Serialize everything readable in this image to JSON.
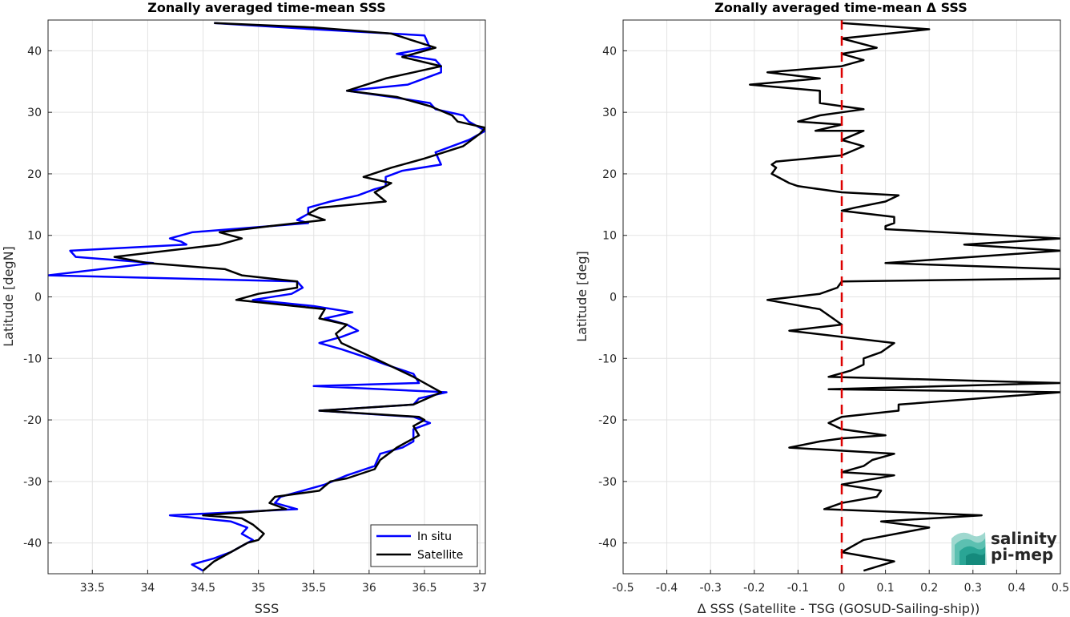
{
  "chart_data": [
    {
      "type": "line",
      "title": "Zonally averaged time-mean SSS",
      "xlabel": "SSS",
      "ylabel": "Latitude [degN]",
      "xlim": [
        33.1,
        37.05
      ],
      "ylim": [
        -45,
        45
      ],
      "xticks": [
        "33.5",
        "34",
        "34.5",
        "35",
        "35.5",
        "36",
        "36.5",
        "37"
      ],
      "xtick_values": [
        33.5,
        34,
        34.5,
        35,
        35.5,
        36,
        36.5,
        37
      ],
      "yticks": [
        "40",
        "30",
        "20",
        "10",
        "0",
        "-10",
        "-20",
        "-30",
        "-40"
      ],
      "ytick_values": [
        40,
        30,
        20,
        10,
        0,
        -10,
        -20,
        -30,
        -40
      ],
      "grid": true,
      "legend_location": "bottom-right",
      "series": [
        {
          "name": "In situ",
          "color": "#0000ff",
          "points": [
            [
              34.6,
              44.5
            ],
            [
              35.5,
              43.5
            ],
            [
              36.5,
              42.5
            ],
            [
              36.55,
              40.5
            ],
            [
              36.25,
              39.5
            ],
            [
              36.6,
              38.5
            ],
            [
              36.65,
              37.5
            ],
            [
              36.65,
              36.5
            ],
            [
              36.35,
              34.5
            ],
            [
              35.8,
              33.5
            ],
            [
              36.2,
              32.5
            ],
            [
              36.55,
              31.5
            ],
            [
              36.6,
              30.5
            ],
            [
              36.85,
              29.5
            ],
            [
              36.9,
              28.5
            ],
            [
              37.05,
              27.0
            ],
            [
              36.9,
              25.5
            ],
            [
              36.6,
              23.5
            ],
            [
              36.65,
              21.5
            ],
            [
              36.3,
              20.5
            ],
            [
              36.15,
              19.5
            ],
            [
              36.15,
              18.0
            ],
            [
              36.05,
              17.5
            ],
            [
              35.9,
              16.5
            ],
            [
              35.65,
              15.5
            ],
            [
              35.45,
              14.5
            ],
            [
              35.45,
              13.5
            ],
            [
              35.35,
              12.5
            ],
            [
              35.45,
              12.0
            ],
            [
              35.1,
              11.5
            ],
            [
              34.4,
              10.5
            ],
            [
              34.2,
              9.5
            ],
            [
              34.3,
              9.0
            ],
            [
              34.35,
              8.5
            ],
            [
              33.3,
              7.5
            ],
            [
              33.35,
              6.5
            ],
            [
              34.05,
              5.5
            ],
            [
              33.1,
              3.5
            ],
            [
              35.35,
              2.5
            ],
            [
              35.4,
              1.5
            ],
            [
              35.3,
              0.5
            ],
            [
              34.95,
              -0.5
            ],
            [
              35.5,
              -1.5
            ],
            [
              35.85,
              -2.5
            ],
            [
              35.6,
              -3.5
            ],
            [
              35.8,
              -4.5
            ],
            [
              35.9,
              -5.5
            ],
            [
              35.75,
              -6.5
            ],
            [
              35.55,
              -7.5
            ],
            [
              35.75,
              -8.5
            ],
            [
              36.0,
              -10.0
            ],
            [
              36.15,
              -11.0
            ],
            [
              36.4,
              -12.5
            ],
            [
              36.45,
              -14.0
            ],
            [
              35.5,
              -14.5
            ],
            [
              36.7,
              -15.5
            ],
            [
              36.45,
              -16.5
            ],
            [
              36.4,
              -17.5
            ],
            [
              35.55,
              -18.5
            ],
            [
              36.4,
              -19.5
            ],
            [
              36.55,
              -20.5
            ],
            [
              36.4,
              -21.5
            ],
            [
              36.4,
              -23.5
            ],
            [
              36.3,
              -24.5
            ],
            [
              36.1,
              -25.5
            ],
            [
              36.05,
              -27.5
            ],
            [
              35.8,
              -29.0
            ],
            [
              35.6,
              -30.5
            ],
            [
              35.4,
              -31.5
            ],
            [
              35.2,
              -32.5
            ],
            [
              35.15,
              -33.5
            ],
            [
              35.35,
              -34.5
            ],
            [
              34.2,
              -35.5
            ],
            [
              34.75,
              -36.5
            ],
            [
              34.9,
              -37.5
            ],
            [
              34.85,
              -38.5
            ],
            [
              34.95,
              -39.5
            ],
            [
              34.85,
              -40.5
            ],
            [
              34.75,
              -41.5
            ],
            [
              34.6,
              -42.5
            ],
            [
              34.4,
              -43.5
            ],
            [
              34.5,
              -44.5
            ]
          ]
        },
        {
          "name": "Satellite",
          "color": "#000000",
          "points": [
            [
              34.6,
              44.5
            ],
            [
              35.5,
              43.8
            ],
            [
              36.2,
              42.8
            ],
            [
              36.6,
              40.5
            ],
            [
              36.3,
              39.0
            ],
            [
              36.65,
              37.5
            ],
            [
              36.4,
              36.5
            ],
            [
              36.15,
              35.5
            ],
            [
              35.8,
              33.5
            ],
            [
              36.25,
              32.5
            ],
            [
              36.55,
              31.0
            ],
            [
              36.75,
              29.5
            ],
            [
              36.8,
              28.5
            ],
            [
              37.05,
              27.5
            ],
            [
              37.0,
              26.5
            ],
            [
              36.85,
              24.5
            ],
            [
              36.5,
              22.5
            ],
            [
              36.2,
              21.0
            ],
            [
              35.95,
              19.5
            ],
            [
              36.2,
              18.5
            ],
            [
              36.05,
              17.0
            ],
            [
              36.15,
              15.5
            ],
            [
              35.55,
              14.5
            ],
            [
              35.45,
              13.5
            ],
            [
              35.6,
              12.5
            ],
            [
              35.1,
              11.5
            ],
            [
              34.65,
              10.5
            ],
            [
              34.85,
              9.5
            ],
            [
              34.65,
              8.5
            ],
            [
              33.7,
              6.5
            ],
            [
              34.0,
              5.5
            ],
            [
              34.7,
              4.5
            ],
            [
              34.85,
              3.5
            ],
            [
              35.35,
              2.5
            ],
            [
              35.35,
              1.5
            ],
            [
              35.0,
              0.5
            ],
            [
              34.8,
              -0.5
            ],
            [
              35.6,
              -2.0
            ],
            [
              35.55,
              -3.5
            ],
            [
              35.8,
              -4.5
            ],
            [
              35.7,
              -6.0
            ],
            [
              35.75,
              -7.5
            ],
            [
              36.05,
              -10.0
            ],
            [
              36.4,
              -13.0
            ],
            [
              36.55,
              -14.5
            ],
            [
              36.65,
              -15.5
            ],
            [
              36.4,
              -17.5
            ],
            [
              35.55,
              -18.5
            ],
            [
              36.45,
              -19.5
            ],
            [
              36.5,
              -20.0
            ],
            [
              36.4,
              -21.0
            ],
            [
              36.45,
              -22.5
            ],
            [
              36.25,
              -24.5
            ],
            [
              36.1,
              -26.5
            ],
            [
              36.05,
              -28.0
            ],
            [
              35.8,
              -29.5
            ],
            [
              35.65,
              -30.0
            ],
            [
              35.55,
              -31.5
            ],
            [
              35.15,
              -32.5
            ],
            [
              35.1,
              -33.5
            ],
            [
              35.25,
              -34.5
            ],
            [
              34.5,
              -35.5
            ],
            [
              34.85,
              -36.0
            ],
            [
              34.95,
              -37.0
            ],
            [
              35.05,
              -38.5
            ],
            [
              35.0,
              -39.5
            ],
            [
              34.9,
              -40.0
            ],
            [
              34.75,
              -41.5
            ],
            [
              34.6,
              -43.0
            ],
            [
              34.5,
              -44.5
            ]
          ]
        }
      ]
    },
    {
      "type": "line",
      "title": "Zonally averaged time-mean Δ SSS",
      "xlabel": "Δ SSS (Satellite - TSG (GOSUD-Sailing-ship))",
      "ylabel": "Latitude [deg]",
      "xlim": [
        -0.5,
        0.5
      ],
      "ylim": [
        -45,
        45
      ],
      "xticks": [
        "-0.5",
        "-0.4",
        "-0.3",
        "-0.2",
        "-0.1",
        "0",
        "0.1",
        "0.2",
        "0.3",
        "0.4",
        "0.5"
      ],
      "xtick_values": [
        -0.5,
        -0.4,
        -0.3,
        -0.2,
        -0.1,
        0,
        0.1,
        0.2,
        0.3,
        0.4,
        0.5
      ],
      "yticks": [
        "40",
        "30",
        "20",
        "10",
        "0",
        "-10",
        "-20",
        "-30",
        "-40"
      ],
      "ytick_values": [
        40,
        30,
        20,
        10,
        0,
        -10,
        -20,
        -30,
        -40
      ],
      "grid": true,
      "reference_line": {
        "x": 0,
        "color": "#dd0000",
        "style": "dashed"
      },
      "series": [
        {
          "color": "#000000",
          "points": [
            [
              0.0,
              44.5
            ],
            [
              0.2,
              43.5
            ],
            [
              0.0,
              42.0
            ],
            [
              0.08,
              40.5
            ],
            [
              0.0,
              39.5
            ],
            [
              0.05,
              38.5
            ],
            [
              0.0,
              37.5
            ],
            [
              -0.17,
              36.5
            ],
            [
              -0.05,
              35.5
            ],
            [
              -0.21,
              34.5
            ],
            [
              -0.05,
              33.5
            ],
            [
              -0.05,
              32.5
            ],
            [
              -0.05,
              31.5
            ],
            [
              0.0,
              31.0
            ],
            [
              0.05,
              30.5
            ],
            [
              0.0,
              30.0
            ],
            [
              -0.05,
              29.5
            ],
            [
              -0.1,
              28.5
            ],
            [
              0.0,
              28.0
            ],
            [
              -0.06,
              27.0
            ],
            [
              0.05,
              27.0
            ],
            [
              0.0,
              25.5
            ],
            [
              0.05,
              24.5
            ],
            [
              0.0,
              23.0
            ],
            [
              -0.15,
              22.0
            ],
            [
              -0.16,
              21.5
            ],
            [
              -0.15,
              21.0
            ],
            [
              -0.16,
              20.0
            ],
            [
              -0.12,
              18.5
            ],
            [
              -0.1,
              18.0
            ],
            [
              0.0,
              17.0
            ],
            [
              0.13,
              16.5
            ],
            [
              0.1,
              15.5
            ],
            [
              0.03,
              14.5
            ],
            [
              0.0,
              14.0
            ],
            [
              0.12,
              13.0
            ],
            [
              0.12,
              12.0
            ],
            [
              0.1,
              11.5
            ],
            [
              0.1,
              11.0
            ],
            [
              0.5,
              9.5
            ],
            [
              0.28,
              8.5
            ],
            [
              0.5,
              7.5
            ],
            [
              0.3,
              6.5
            ],
            [
              0.1,
              5.5
            ],
            [
              0.5,
              4.5
            ],
            [
              0.5,
              3.0
            ],
            [
              0.0,
              2.5
            ],
            [
              -0.01,
              1.5
            ],
            [
              -0.05,
              0.5
            ],
            [
              -0.17,
              -0.5
            ],
            [
              -0.05,
              -2.0
            ],
            [
              -0.02,
              -3.5
            ],
            [
              0.0,
              -4.5
            ],
            [
              -0.12,
              -5.5
            ],
            [
              0.12,
              -7.5
            ],
            [
              0.09,
              -9.0
            ],
            [
              0.05,
              -10.0
            ],
            [
              0.05,
              -11.0
            ],
            [
              0.02,
              -12.0
            ],
            [
              -0.03,
              -13.0
            ],
            [
              0.5,
              -14.0
            ],
            [
              -0.03,
              -15.0
            ],
            [
              0.5,
              -15.5
            ],
            [
              0.13,
              -17.5
            ],
            [
              0.13,
              -18.5
            ],
            [
              0.0,
              -19.5
            ],
            [
              -0.03,
              -20.5
            ],
            [
              0.0,
              -21.5
            ],
            [
              0.1,
              -22.5
            ],
            [
              0.0,
              -23.0
            ],
            [
              -0.05,
              -23.5
            ],
            [
              -0.12,
              -24.5
            ],
            [
              0.12,
              -25.5
            ],
            [
              0.07,
              -26.5
            ],
            [
              0.05,
              -27.5
            ],
            [
              0.0,
              -28.5
            ],
            [
              0.12,
              -29.0
            ],
            [
              0.0,
              -30.5
            ],
            [
              0.09,
              -31.5
            ],
            [
              0.08,
              -32.5
            ],
            [
              0.0,
              -33.5
            ],
            [
              -0.04,
              -34.5
            ],
            [
              0.32,
              -35.5
            ],
            [
              0.09,
              -36.5
            ],
            [
              0.2,
              -37.5
            ],
            [
              0.05,
              -39.5
            ],
            [
              0.0,
              -41.5
            ],
            [
              0.12,
              -43.0
            ],
            [
              0.05,
              -44.5
            ]
          ]
        }
      ]
    }
  ],
  "legend": {
    "items": [
      "In situ",
      "Satellite"
    ]
  },
  "logo": {
    "line1": "salinity",
    "line2": "pi-mep",
    "color": "#1aa899"
  }
}
